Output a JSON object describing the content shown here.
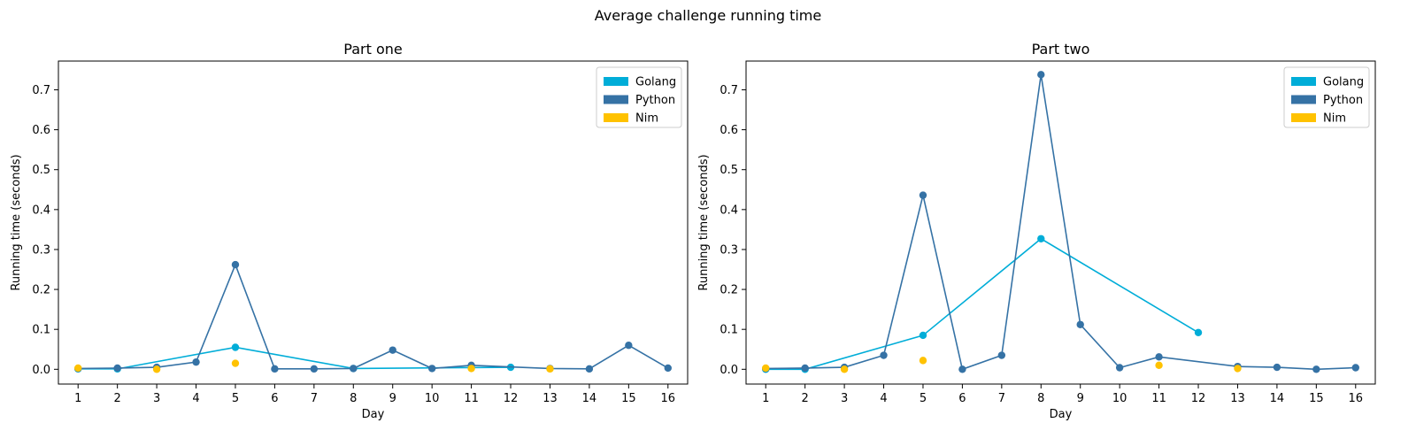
{
  "figure": {
    "suptitle": "Average challenge running time"
  },
  "colors": {
    "Golang": "#00ADD8",
    "Python": "#3572A5",
    "Nim": "#FFC200"
  },
  "legend": {
    "placement": "upper right",
    "entries": [
      "Golang",
      "Python",
      "Nim"
    ]
  },
  "chart_data": [
    {
      "type": "scatter",
      "title": "Part one",
      "xlabel": "Day",
      "ylabel": "Running time (seconds)",
      "xlim": [
        0.5,
        16.5
      ],
      "ylim": [
        -0.037,
        0.772
      ],
      "x_ticks": [
        1,
        2,
        3,
        4,
        5,
        6,
        7,
        8,
        9,
        10,
        11,
        12,
        13,
        14,
        15,
        16
      ],
      "y_ticks": [
        0.0,
        0.1,
        0.2,
        0.3,
        0.4,
        0.5,
        0.6,
        0.7
      ],
      "series": [
        {
          "name": "Golang",
          "line": true,
          "points": [
            [
              1,
              0.001
            ],
            [
              2,
              0.001
            ],
            [
              5,
              0.055
            ],
            [
              8,
              0.002
            ],
            [
              12,
              0.005
            ]
          ]
        },
        {
          "name": "Python",
          "line": true,
          "points": [
            [
              1,
              0.002
            ],
            [
              2,
              0.003
            ],
            [
              3,
              0.005
            ],
            [
              4,
              0.018
            ],
            [
              5,
              0.262
            ],
            [
              6,
              0.001
            ],
            [
              7,
              0.001
            ],
            [
              8,
              0.002
            ],
            [
              9,
              0.048
            ],
            [
              10,
              0.002
            ],
            [
              11,
              0.01
            ],
            [
              13,
              0.002
            ],
            [
              14,
              0.001
            ],
            [
              15,
              0.06
            ],
            [
              16,
              0.003
            ]
          ]
        },
        {
          "name": "Nim",
          "line": false,
          "points": [
            [
              1,
              0.003
            ],
            [
              3,
              0.0
            ],
            [
              5,
              0.015
            ],
            [
              11,
              0.002
            ],
            [
              13,
              0.001
            ]
          ]
        }
      ]
    },
    {
      "type": "scatter",
      "title": "Part two",
      "xlabel": "Day",
      "ylabel": "Running time (seconds)",
      "xlim": [
        0.5,
        16.5
      ],
      "ylim": [
        -0.037,
        0.772
      ],
      "x_ticks": [
        1,
        2,
        3,
        4,
        5,
        6,
        7,
        8,
        9,
        10,
        11,
        12,
        13,
        14,
        15,
        16
      ],
      "y_ticks": [
        0.0,
        0.1,
        0.2,
        0.3,
        0.4,
        0.5,
        0.6,
        0.7
      ],
      "series": [
        {
          "name": "Golang",
          "line": true,
          "points": [
            [
              1,
              0.0
            ],
            [
              2,
              0.0
            ],
            [
              5,
              0.085
            ],
            [
              8,
              0.327
            ],
            [
              12,
              0.092
            ]
          ]
        },
        {
          "name": "Python",
          "line": true,
          "points": [
            [
              1,
              0.002
            ],
            [
              2,
              0.003
            ],
            [
              3,
              0.005
            ],
            [
              4,
              0.035
            ],
            [
              5,
              0.436
            ],
            [
              6,
              0.0
            ],
            [
              7,
              0.035
            ],
            [
              8,
              0.738
            ],
            [
              9,
              0.112
            ],
            [
              10,
              0.004
            ],
            [
              11,
              0.031
            ],
            [
              13,
              0.007
            ],
            [
              14,
              0.005
            ],
            [
              15,
              0.0
            ],
            [
              16,
              0.004
            ]
          ]
        },
        {
          "name": "Nim",
          "line": false,
          "points": [
            [
              1,
              0.003
            ],
            [
              3,
              0.0
            ],
            [
              5,
              0.022
            ],
            [
              11,
              0.01
            ],
            [
              13,
              0.002
            ]
          ]
        }
      ]
    }
  ]
}
